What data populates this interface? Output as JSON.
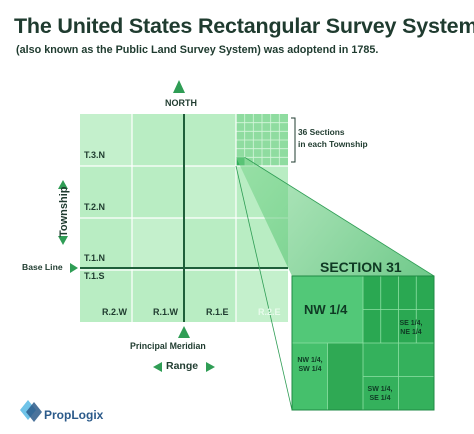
{
  "header": {
    "title": "The United States Rectangular Survey System",
    "subtitle": "(also known as the Public Land Survey System) was adoptend in 1785."
  },
  "compass": {
    "north_label": "NORTH",
    "township_label": "Township",
    "range_label": "Range"
  },
  "callout": {
    "sections_line1": "36 Sections",
    "sections_line2": "in each Township"
  },
  "grid": {
    "township_rows": [
      "T.3.N",
      "T.2.N",
      "T.1.N",
      "T.1.S"
    ],
    "range_cols": [
      "R.2.W",
      "R.1.W",
      "R.1.E",
      "R.2.E"
    ],
    "base_line_label": "Base Line",
    "principal_meridian_label": "Principal Meridian"
  },
  "section": {
    "title": "SECTION 31",
    "nw_quarter": "NW 1/4",
    "se_ne_line1": "SE 1/4,",
    "se_ne_line2": "NE 1/4",
    "nw_sw_line1": "NW 1/4,",
    "nw_sw_line2": "SW 1/4",
    "sw_se_line1": "SW 1/4,",
    "sw_se_line2": "SE 1/4"
  },
  "brand": {
    "name": "PropLogix"
  },
  "colors": {
    "grid_fill": "#b6ecc0",
    "grid_line": "#ffffff",
    "section_dark": "#1fa04a",
    "section_mid": "#3fc06a",
    "text_dark": "#1f3b2f",
    "arrow_green": "#2f9d55"
  }
}
